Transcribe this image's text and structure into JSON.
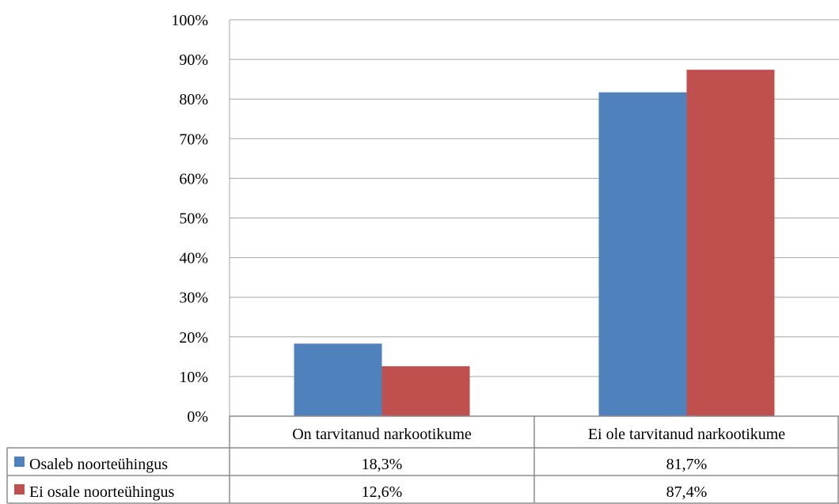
{
  "chart_data": {
    "type": "bar",
    "categories": [
      "On tarvitanud narkootikume",
      "Ei ole tarvitanud narkootikume"
    ],
    "series": [
      {
        "name": "Osaleb noorteühingus",
        "values": [
          18.3,
          81.7
        ],
        "labels": [
          "18,3%",
          "81,7%"
        ],
        "color": "#4f81bd"
      },
      {
        "name": "Ei osale noorteühingus",
        "values": [
          12.6,
          87.4
        ],
        "labels": [
          "12,6%",
          "87,4%"
        ],
        "color": "#c0504d"
      }
    ],
    "ylim": [
      0,
      100
    ],
    "yticks": [
      "0%",
      "10%",
      "20%",
      "30%",
      "40%",
      "50%",
      "60%",
      "70%",
      "80%",
      "90%",
      "100%"
    ],
    "grid": true,
    "legend": "data-table"
  }
}
